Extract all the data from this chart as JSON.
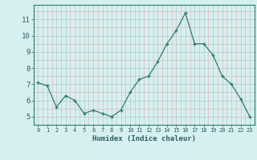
{
  "x": [
    0,
    1,
    2,
    3,
    4,
    5,
    6,
    7,
    8,
    9,
    10,
    11,
    12,
    13,
    14,
    15,
    16,
    17,
    18,
    19,
    20,
    21,
    22,
    23
  ],
  "y": [
    7.1,
    6.9,
    5.6,
    6.3,
    6.0,
    5.2,
    5.4,
    5.2,
    5.0,
    5.4,
    6.5,
    7.3,
    7.5,
    8.4,
    9.5,
    10.3,
    11.4,
    9.5,
    9.5,
    8.8,
    7.5,
    7.0,
    6.1,
    5.0
  ],
  "xlabel": "Humidex (Indice chaleur)",
  "line_color": "#2e7d6e",
  "bg_color": "#d6eff0",
  "grid_color_major": "#b8c8c8",
  "grid_color_minor": "#ddbcbc",
  "ylim": [
    4.5,
    11.9
  ],
  "xlim": [
    -0.5,
    23.5
  ],
  "yticks": [
    5,
    6,
    7,
    8,
    9,
    10,
    11
  ],
  "xtick_labels": [
    "0",
    "1",
    "2",
    "3",
    "4",
    "5",
    "6",
    "7",
    "8",
    "9",
    "10",
    "11",
    "12",
    "13",
    "14",
    "15",
    "16",
    "17",
    "18",
    "19",
    "20",
    "21",
    "22",
    "23"
  ]
}
